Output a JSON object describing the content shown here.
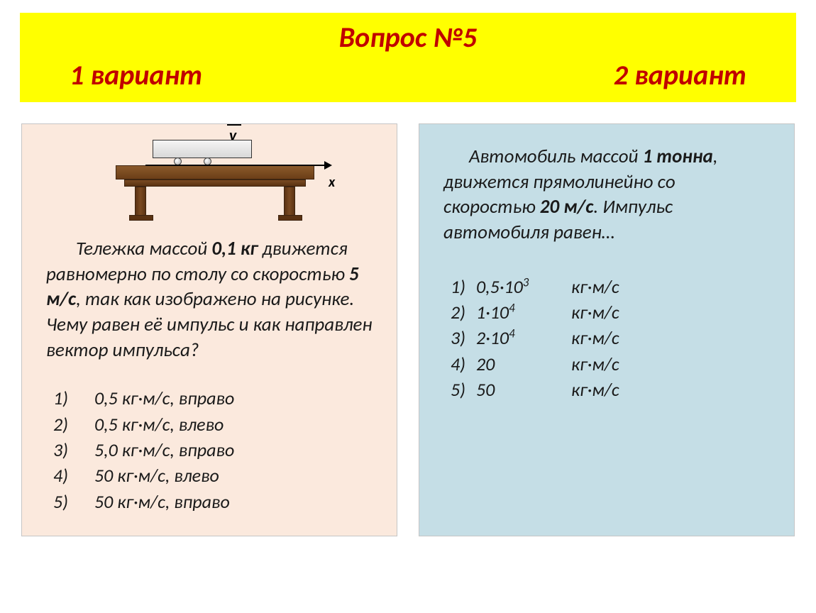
{
  "header": {
    "title": "Вопрос №5",
    "variant1": "1 вариант",
    "variant2": "2 вариант"
  },
  "colors": {
    "header_bg": "#ffff00",
    "header_text": "#c00000",
    "panel_left_bg": "#fbe9dd",
    "panel_right_bg": "#c5dee6",
    "text": "#1a1a1a"
  },
  "left": {
    "diagram": {
      "v_label": "v",
      "x_label": "x"
    },
    "text_pre": "Тележка массой ",
    "mass": "0,1 кг",
    "text_mid1": " движется равномерно по столу со скоростью ",
    "speed": "5 м/с",
    "text_mid2": ", так как изображено на рисунке. Чему равен её импульс и как направлен вектор импульса?",
    "answers": [
      {
        "n": "1)",
        "v": "0,5 кг·м/с,  вправо"
      },
      {
        "n": "2)",
        "v": "0,5 кг·м/с,  влево"
      },
      {
        "n": "3)",
        "v": "5,0 кг·м/с,  вправо"
      },
      {
        "n": "4)",
        "v": "50 кг·м/с,  влево"
      },
      {
        "n": "5)",
        "v": "50 кг·м/с,  вправо"
      }
    ]
  },
  "right": {
    "text_pre": "Автомобиль массой ",
    "mass": "1 тонна",
    "text_mid1": ", движется прямолинейно со скоростью ",
    "speed": "20 м/с",
    "text_mid2": ". Импульс автомобиля равен…",
    "answers": [
      {
        "n": "1)",
        "v": "0,5·10",
        "sup": "3",
        "u": "кг·м/с"
      },
      {
        "n": "2)",
        "v": "1·10",
        "sup": "4",
        "u": "кг·м/с"
      },
      {
        "n": "3)",
        "v": "2·10",
        "sup": "4",
        "u": "кг·м/с"
      },
      {
        "n": "4)",
        "v": "20",
        "sup": "",
        "u": "кг·м/с"
      },
      {
        "n": "5)",
        "v": "50",
        "sup": "",
        "u": "кг·м/с"
      }
    ]
  }
}
